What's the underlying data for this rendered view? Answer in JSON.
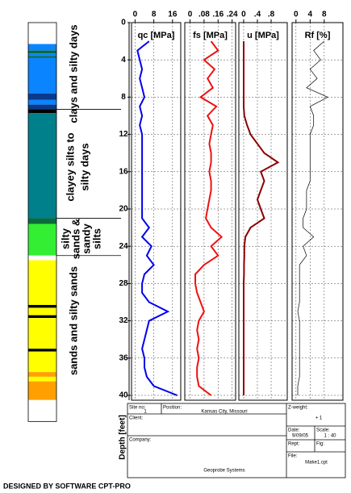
{
  "chart_data": {
    "type": "line",
    "y_label": "Depth [feet]",
    "ylim": [
      0,
      40
    ],
    "yticks": [
      0,
      4,
      8,
      12,
      16,
      20,
      24,
      28,
      32,
      36,
      40
    ],
    "grid": true,
    "depth": [
      2,
      3,
      4,
      5,
      6,
      7,
      8,
      9,
      10,
      11,
      12,
      13,
      14,
      15,
      16,
      17,
      18,
      19,
      20,
      21,
      22,
      23,
      24,
      25,
      26,
      27,
      28,
      29,
      30,
      31,
      32,
      33,
      34,
      35,
      36,
      37,
      38,
      39,
      40
    ],
    "panels": [
      {
        "title": "qc [MPa]",
        "color": "#0000ee",
        "xlim": [
          -1.5,
          19.5
        ],
        "xticks": [
          0,
          8,
          16
        ],
        "values": [
          6,
          1,
          2,
          3,
          2,
          3,
          4,
          2,
          3,
          2,
          3,
          3,
          3,
          3,
          3,
          3,
          3,
          3,
          3,
          3,
          6,
          3,
          7,
          5,
          8,
          4,
          3,
          3,
          6,
          14,
          6,
          5,
          4,
          3,
          4,
          4,
          5,
          8,
          18
        ]
      },
      {
        "title": "fs [MPa]",
        "color": "#ee1111",
        "xlim": [
          -0.03,
          0.26
        ],
        "xticks": [
          0,
          {
            "value": 0.08,
            "label": ".08"
          },
          {
            "value": 0.16,
            "label": ".16"
          },
          {
            "value": 0.24,
            "label": ".24"
          }
        ],
        "values": [
          0.12,
          0.16,
          0.08,
          0.14,
          0.1,
          0.13,
          0.06,
          0.15,
          0.1,
          0.13,
          0.12,
          0.11,
          0.12,
          0.12,
          0.11,
          0.12,
          0.12,
          0.11,
          0.1,
          0.09,
          0.12,
          0.18,
          0.12,
          0.16,
          0.08,
          0.03,
          0.03,
          0.04,
          0.06,
          0.08,
          0.05,
          0.04,
          0.05,
          0.04,
          0.05,
          0.04,
          0.04,
          0.05,
          0.12
        ]
      },
      {
        "title": "u [MPa]",
        "color": "#8b0000",
        "xlim": [
          -0.14,
          1.27
        ],
        "xticks": [
          0,
          {
            "value": 0.4,
            "label": ".4"
          },
          {
            "value": 0.8,
            "label": ".8"
          }
        ],
        "values": [
          0,
          0,
          0,
          0,
          0,
          0,
          0,
          0,
          0.02,
          0.1,
          0.2,
          0.4,
          0.6,
          1.0,
          0.5,
          0.6,
          0.5,
          0.4,
          0.5,
          0.6,
          0.2,
          0.05,
          0.02,
          0.02,
          0.01,
          0.01,
          0,
          0,
          0,
          0,
          0,
          0,
          0,
          0,
          0,
          0,
          0,
          0,
          0
        ]
      },
      {
        "title": "Rf [%]",
        "color": "#000000",
        "xlim": [
          -1.1,
          13.3
        ],
        "xticks": [
          0,
          4,
          8
        ],
        "values": [
          8,
          5,
          7,
          4,
          6,
          3,
          9,
          4,
          5,
          5,
          4,
          4,
          4,
          4,
          4,
          4,
          3,
          3,
          3,
          2,
          2,
          5,
          2,
          3,
          1,
          1,
          1,
          1,
          1,
          0.5,
          1,
          1,
          1,
          1,
          1,
          1,
          1,
          0.5,
          0.5
        ]
      }
    ],
    "soil": {
      "layers": [
        {
          "top": 0,
          "bottom": 2.3,
          "color": "#ffffff"
        },
        {
          "top": 2.3,
          "bottom": 3.0,
          "color": "#0a84ff"
        },
        {
          "top": 3.0,
          "bottom": 3.3,
          "color": "#0b6b3a"
        },
        {
          "top": 3.3,
          "bottom": 3.6,
          "color": "#0a84ff"
        },
        {
          "top": 3.6,
          "bottom": 3.8,
          "color": "#0b6b3a"
        },
        {
          "top": 3.8,
          "bottom": 7.6,
          "color": "#0a84ff"
        },
        {
          "top": 7.6,
          "bottom": 8.3,
          "color": "#0b3a8a"
        },
        {
          "top": 8.3,
          "bottom": 8.8,
          "color": "#0a84ff"
        },
        {
          "top": 8.8,
          "bottom": 9.3,
          "color": "#0b3a8a"
        },
        {
          "top": 9.3,
          "bottom": 9.7,
          "color": "#000000"
        },
        {
          "top": 9.7,
          "bottom": 21,
          "color": "#00808a"
        },
        {
          "top": 21,
          "bottom": 21.6,
          "color": "#0b6b3a"
        },
        {
          "top": 21.6,
          "bottom": 25,
          "color": "#33ee33"
        },
        {
          "top": 25,
          "bottom": 25.5,
          "color": "#ffffff"
        },
        {
          "top": 25.5,
          "bottom": 30.3,
          "color": "#ffff00"
        },
        {
          "top": 30.3,
          "bottom": 30.6,
          "color": "#000000"
        },
        {
          "top": 30.6,
          "bottom": 31.4,
          "color": "#ffff00"
        },
        {
          "top": 31.4,
          "bottom": 31.7,
          "color": "#000000"
        },
        {
          "top": 31.7,
          "bottom": 35,
          "color": "#ffff00"
        },
        {
          "top": 35,
          "bottom": 35.3,
          "color": "#000000"
        },
        {
          "top": 35.3,
          "bottom": 37.5,
          "color": "#ffff00"
        },
        {
          "top": 37.5,
          "bottom": 38,
          "color": "#ffa000"
        },
        {
          "top": 38,
          "bottom": 38.5,
          "color": "#ffff00"
        },
        {
          "top": 38.5,
          "bottom": 40.5,
          "color": "#ffa000"
        },
        {
          "top": 40.5,
          "bottom": 42.8,
          "color": "#ffffff"
        }
      ],
      "labels": [
        [
          "clays and silty days"
        ],
        [
          "clayey silts to",
          "silty days"
        ],
        [
          "silty",
          "sands &",
          "sandy",
          "silts"
        ],
        [
          "sands and silty sands"
        ]
      ]
    }
  },
  "info": {
    "site_no_label": "Site no:",
    "site_no": "1",
    "position_label": "Position:",
    "position": "Kansas City, Missouri",
    "client_label": "Client:",
    "company_label": "Company:",
    "company": "Geoprobe Systems",
    "z_weight_label": "Z-weight:",
    "z_weight": "+ 1",
    "date_label": "Date:",
    "date": "9/09/05",
    "scale_label": "Scale:",
    "scale": "1 : 40",
    "rept_label": "Rept:",
    "fig_label": "Fig:",
    "file_label": "File:",
    "file": "Make1.cpt"
  },
  "footer": "DESIGNED BY SOFTWARE CPT-PRO"
}
